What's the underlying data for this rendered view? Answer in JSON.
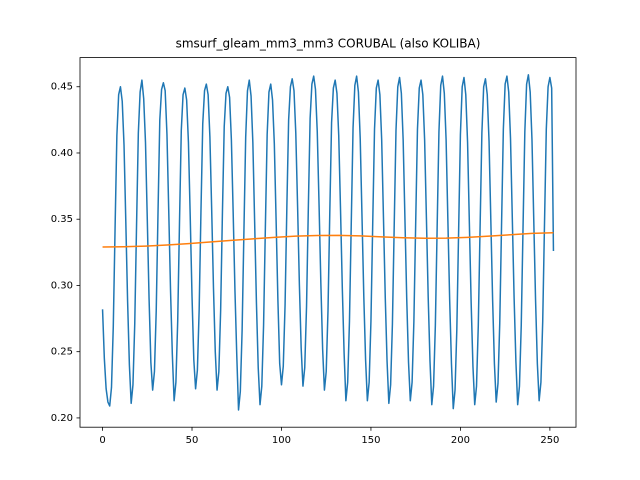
{
  "chart_data": {
    "type": "line",
    "title": "smsurf_gleam_mm3_mm3 CORUBAL (also KOLIBA)",
    "xlim": [
      -12.6,
      264.6
    ],
    "ylim": [
      0.193,
      0.472
    ],
    "xticks": [
      0,
      50,
      100,
      150,
      200,
      250
    ],
    "yticks": [
      {
        "value": 0.2,
        "label": "0.20"
      },
      0.25,
      {
        "value": 0.3,
        "label": "0.30"
      },
      0.35,
      {
        "value": 0.4,
        "label": "0.40"
      },
      0.45
    ],
    "series": [
      {
        "color": "#1f77b4",
        "x": [
          0,
          1,
          2,
          3,
          4,
          5,
          6,
          7,
          8,
          9,
          10,
          11,
          12,
          13,
          14,
          15,
          16,
          17,
          18,
          19,
          20,
          21,
          22,
          23,
          24,
          25,
          26,
          27,
          28,
          29,
          30,
          31,
          32,
          33,
          34,
          35,
          36,
          37,
          38,
          39,
          40,
          41,
          42,
          43,
          44,
          45,
          46,
          47,
          48,
          49,
          50,
          51,
          52,
          53,
          54,
          55,
          56,
          57,
          58,
          59,
          60,
          61,
          62,
          63,
          64,
          65,
          66,
          67,
          68,
          69,
          70,
          71,
          72,
          73,
          74,
          75,
          76,
          77,
          78,
          79,
          80,
          81,
          82,
          83,
          84,
          85,
          86,
          87,
          88,
          89,
          90,
          91,
          92,
          93,
          94,
          95,
          96,
          97,
          98,
          99,
          100,
          101,
          102,
          103,
          104,
          105,
          106,
          107,
          108,
          109,
          110,
          111,
          112,
          113,
          114,
          115,
          116,
          117,
          118,
          119,
          120,
          121,
          122,
          123,
          124,
          125,
          126,
          127,
          128,
          129,
          130,
          131,
          132,
          133,
          134,
          135,
          136,
          137,
          138,
          139,
          140,
          141,
          142,
          143,
          144,
          145,
          146,
          147,
          148,
          149,
          150,
          151,
          152,
          153,
          154,
          155,
          156,
          157,
          158,
          159,
          160,
          161,
          162,
          163,
          164,
          165,
          166,
          167,
          168,
          169,
          170,
          171,
          172,
          173,
          174,
          175,
          176,
          177,
          178,
          179,
          180,
          181,
          182,
          183,
          184,
          185,
          186,
          187,
          188,
          189,
          190,
          191,
          192,
          193,
          194,
          195,
          196,
          197,
          198,
          199,
          200,
          201,
          202,
          203,
          204,
          205,
          206,
          207,
          208,
          209,
          210,
          211,
          212,
          213,
          214,
          215,
          216,
          217,
          218,
          219,
          220,
          221,
          222,
          223,
          224,
          225,
          226,
          227,
          228,
          229,
          230,
          231,
          232,
          233,
          234,
          235,
          236,
          237,
          238,
          239,
          240,
          241,
          242,
          243,
          244,
          245,
          246,
          247,
          248,
          249,
          250,
          251,
          252
        ],
        "values": [
          0.282,
          0.245,
          0.222,
          0.212,
          0.209,
          0.223,
          0.269,
          0.343,
          0.413,
          0.444,
          0.45,
          0.439,
          0.406,
          0.348,
          0.288,
          0.24,
          0.211,
          0.225,
          0.271,
          0.345,
          0.415,
          0.446,
          0.455,
          0.441,
          0.408,
          0.35,
          0.29,
          0.242,
          0.221,
          0.235,
          0.281,
          0.355,
          0.425,
          0.448,
          0.453,
          0.447,
          0.414,
          0.356,
          0.296,
          0.248,
          0.213,
          0.227,
          0.273,
          0.347,
          0.417,
          0.444,
          0.449,
          0.44,
          0.408,
          0.352,
          0.292,
          0.244,
          0.222,
          0.236,
          0.282,
          0.356,
          0.422,
          0.447,
          0.452,
          0.444,
          0.412,
          0.357,
          0.298,
          0.25,
          0.221,
          0.235,
          0.281,
          0.355,
          0.42,
          0.445,
          0.45,
          0.442,
          0.41,
          0.355,
          0.296,
          0.248,
          0.206,
          0.22,
          0.266,
          0.34,
          0.412,
          0.447,
          0.455,
          0.443,
          0.408,
          0.348,
          0.287,
          0.238,
          0.21,
          0.224,
          0.27,
          0.344,
          0.414,
          0.446,
          0.452,
          0.44,
          0.407,
          0.349,
          0.289,
          0.241,
          0.225,
          0.239,
          0.285,
          0.359,
          0.425,
          0.45,
          0.456,
          0.447,
          0.415,
          0.36,
          0.301,
          0.253,
          0.224,
          0.238,
          0.284,
          0.358,
          0.426,
          0.452,
          0.458,
          0.448,
          0.416,
          0.361,
          0.302,
          0.252,
          0.221,
          0.235,
          0.281,
          0.355,
          0.423,
          0.449,
          0.455,
          0.445,
          0.413,
          0.357,
          0.298,
          0.249,
          0.213,
          0.227,
          0.273,
          0.347,
          0.419,
          0.451,
          0.458,
          0.446,
          0.411,
          0.352,
          0.292,
          0.244,
          0.213,
          0.227,
          0.273,
          0.347,
          0.418,
          0.449,
          0.455,
          0.444,
          0.41,
          0.351,
          0.291,
          0.243,
          0.211,
          0.225,
          0.271,
          0.345,
          0.417,
          0.45,
          0.457,
          0.445,
          0.41,
          0.35,
          0.29,
          0.242,
          0.213,
          0.227,
          0.273,
          0.347,
          0.418,
          0.449,
          0.455,
          0.444,
          0.41,
          0.351,
          0.291,
          0.243,
          0.21,
          0.224,
          0.27,
          0.344,
          0.416,
          0.451,
          0.458,
          0.445,
          0.41,
          0.349,
          0.289,
          0.241,
          0.207,
          0.221,
          0.267,
          0.341,
          0.414,
          0.45,
          0.457,
          0.444,
          0.408,
          0.347,
          0.287,
          0.239,
          0.21,
          0.224,
          0.27,
          0.344,
          0.415,
          0.45,
          0.456,
          0.444,
          0.409,
          0.349,
          0.289,
          0.241,
          0.212,
          0.226,
          0.272,
          0.346,
          0.418,
          0.452,
          0.458,
          0.446,
          0.411,
          0.351,
          0.291,
          0.243,
          0.21,
          0.224,
          0.27,
          0.344,
          0.416,
          0.452,
          0.459,
          0.446,
          0.41,
          0.349,
          0.289,
          0.241,
          0.213,
          0.227,
          0.273,
          0.347,
          0.418,
          0.45,
          0.457,
          0.449,
          0.326
        ]
      },
      {
        "color": "#ff7f0e",
        "x": [
          0,
          12,
          24,
          36,
          48,
          60,
          72,
          84,
          96,
          108,
          120,
          132,
          144,
          156,
          168,
          180,
          192,
          204,
          216,
          228,
          240,
          252
        ],
        "values": [
          0.329,
          0.3292,
          0.3297,
          0.3305,
          0.3316,
          0.3328,
          0.334,
          0.3352,
          0.3363,
          0.3372,
          0.3377,
          0.3378,
          0.3374,
          0.3367,
          0.336,
          0.3356,
          0.3357,
          0.3363,
          0.3372,
          0.3383,
          0.3393,
          0.3398
        ]
      }
    ]
  }
}
